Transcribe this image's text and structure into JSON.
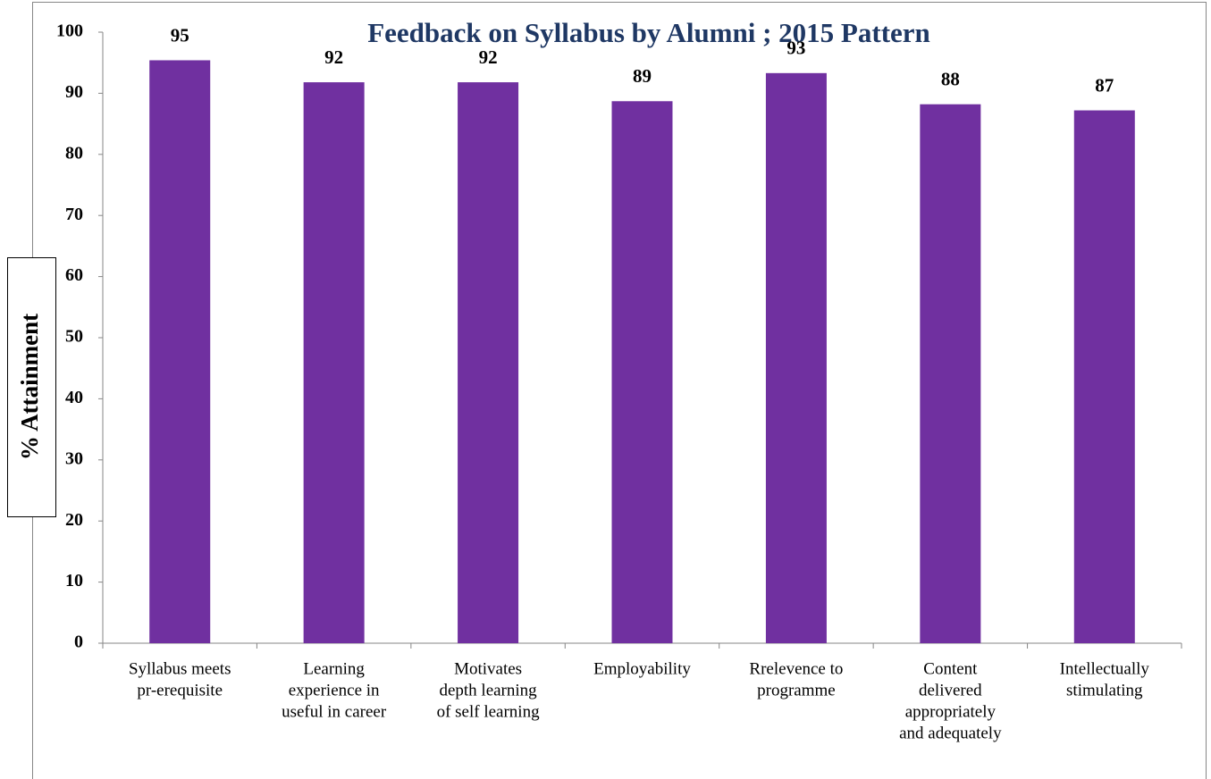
{
  "chart_data": {
    "type": "bar",
    "title": "Feedback on Syllabus by Alumni ; 2015 Pattern",
    "y_label": "% Attainment",
    "categories": [
      [
        "Syllabus meets",
        "pr-erequisite"
      ],
      [
        "Learning",
        "experience in",
        "useful in career"
      ],
      [
        "Motivates",
        "depth learning",
        "of self learning"
      ],
      [
        "Employability"
      ],
      [
        "Rrelevence to",
        "programme"
      ],
      [
        "Content",
        "delivered",
        "appropriately",
        "and adequately"
      ],
      [
        "Intellectually",
        "stimulating"
      ]
    ],
    "values": [
      95.4,
      91.8,
      91.8,
      88.7,
      93.3,
      88.2,
      87.2
    ],
    "value_labels": [
      "95",
      "92",
      "92",
      "89",
      "93",
      "88",
      "87"
    ],
    "color": "#7030a0",
    "ylim": [
      0,
      100
    ],
    "yticks": [
      0,
      10,
      20,
      30,
      40,
      50,
      60,
      70,
      80,
      90,
      100
    ],
    "grid": false
  }
}
